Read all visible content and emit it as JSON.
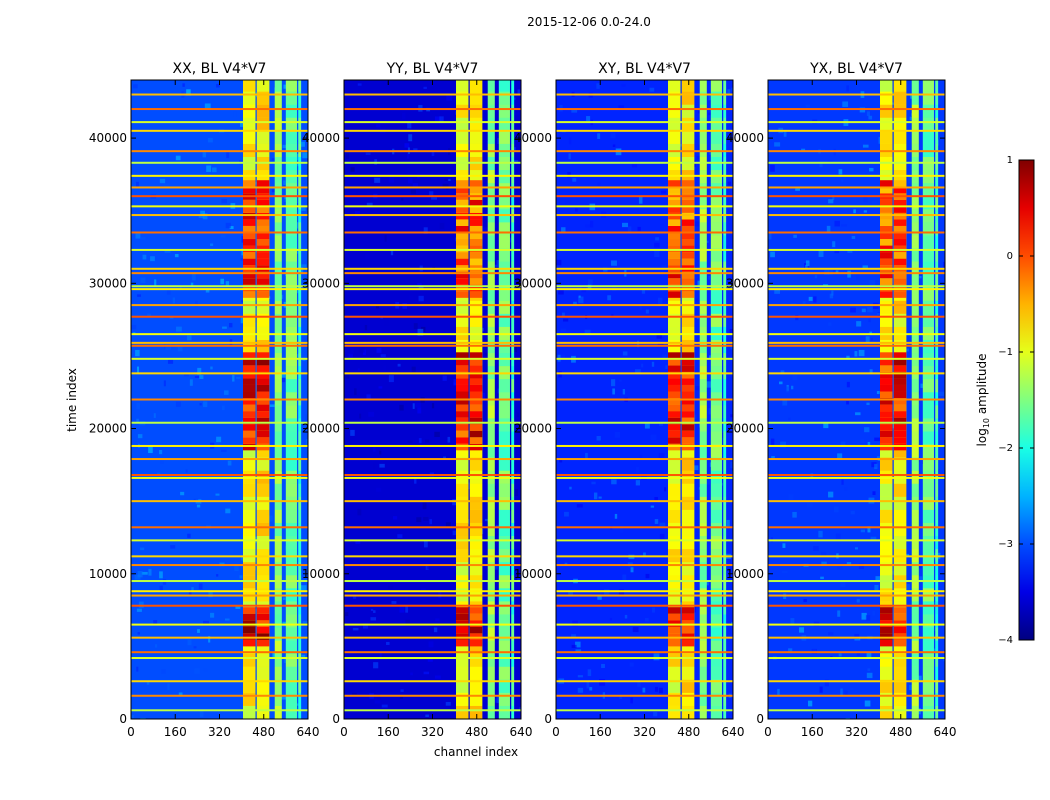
{
  "chart_data": {
    "type": "heatmap",
    "suptitle": "2015-12-06 0.0-24.0",
    "xlabel": "channel index",
    "ylabel": "time index",
    "xlim": [
      0,
      640
    ],
    "ylim": [
      0,
      44000
    ],
    "xticks": [
      "0",
      "160",
      "320",
      "480",
      "640"
    ],
    "yticks": [
      "0",
      "10000",
      "20000",
      "30000",
      "40000"
    ],
    "panels": [
      {
        "title": "XX, BL V4*V7",
        "background_level": -3.0
      },
      {
        "title": "YY, BL V4*V7",
        "background_level": -3.6
      },
      {
        "title": "XY, BL V4*V7",
        "background_level": -3.2
      },
      {
        "title": "YX, BL V4*V7",
        "background_level": -3.1
      }
    ],
    "colorbar": {
      "label": "log",
      "label_sub": "10",
      "label_tail": " amplitude",
      "range": [
        -4,
        1
      ],
      "ticks": [
        "1",
        "0",
        "−1",
        "−2",
        "−3",
        "−4"
      ],
      "colormap": "jet"
    },
    "bright_channel_bands": [
      [
        405,
        450,
        -0.9
      ],
      [
        455,
        500,
        -0.8
      ],
      [
        520,
        545,
        -1.4
      ],
      [
        560,
        600,
        -1.6
      ],
      [
        605,
        615,
        -1.8
      ]
    ],
    "strong_time_ranges": [
      [
        5000,
        7600,
        0.5
      ],
      [
        18500,
        25000,
        0.4
      ],
      [
        29000,
        37000,
        0.1
      ]
    ],
    "rfi_time_rows": [
      600,
      1600,
      2600,
      4200,
      4600,
      5600,
      6500,
      7800,
      8500,
      8800,
      9500,
      10600,
      11200,
      12300,
      13200,
      15000,
      16600,
      16800,
      17900,
      18800,
      20400,
      22000,
      23800,
      24800,
      25700,
      25900,
      26500,
      27700,
      28500,
      29600,
      29800,
      30700,
      31000,
      32300,
      33500,
      34700,
      35300,
      36000,
      36600,
      37400,
      38300,
      39100,
      40500,
      41100,
      42000,
      43000
    ]
  }
}
